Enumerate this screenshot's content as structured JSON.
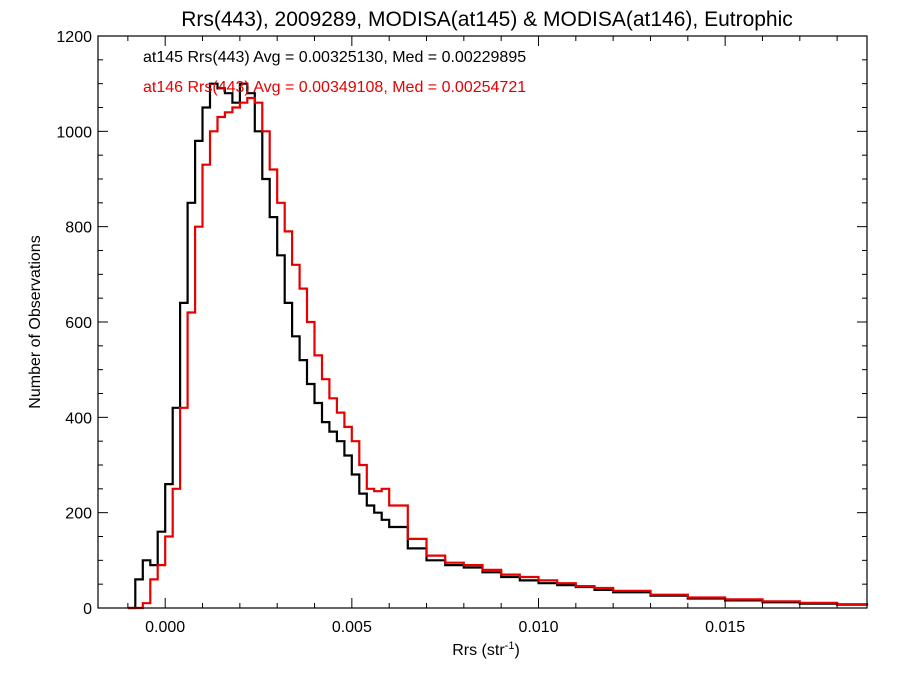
{
  "chart_data": {
    "type": "line",
    "title": "Rrs(443), 2009289, MODISA(at145) & MODISA(at146), Eutrophic",
    "xlabel": "Rrs (str",
    "xlabel_sup": "-1",
    "xlabel_suffix": ")",
    "ylabel": "Number of Observations",
    "xlim": [
      -0.0018,
      0.0188
    ],
    "ylim": [
      0,
      1200
    ],
    "xticks": [
      0.0,
      0.005,
      0.01,
      0.015
    ],
    "xtick_labels": [
      "0.000",
      "0.005",
      "0.010",
      "0.015"
    ],
    "yticks": [
      0,
      200,
      400,
      600,
      800,
      1000,
      1200
    ],
    "ytick_labels": [
      "0",
      "200",
      "400",
      "600",
      "800",
      "1000",
      "1200"
    ],
    "grid": false,
    "legend_position": "top-left",
    "series": [
      {
        "name": "at145",
        "color": "#000000",
        "label": "at145 Rrs(443) Avg = 0.00325130, Med = 0.00229895",
        "x": [
          -0.001,
          -0.0008,
          -0.0006,
          -0.0004,
          -0.0002,
          0.0,
          0.0002,
          0.0004,
          0.0006,
          0.0008,
          0.001,
          0.0012,
          0.0014,
          0.0016,
          0.0018,
          0.002,
          0.0022,
          0.0024,
          0.0026,
          0.0028,
          0.003,
          0.0032,
          0.0034,
          0.0036,
          0.0038,
          0.004,
          0.0042,
          0.0044,
          0.0046,
          0.0048,
          0.005,
          0.0052,
          0.0054,
          0.0056,
          0.0058,
          0.006,
          0.0065,
          0.007,
          0.0075,
          0.008,
          0.0085,
          0.009,
          0.0095,
          0.01,
          0.0105,
          0.011,
          0.0115,
          0.012,
          0.013,
          0.014,
          0.015,
          0.016,
          0.017,
          0.018,
          0.0188
        ],
        "y": [
          0,
          60,
          100,
          90,
          160,
          260,
          420,
          640,
          850,
          980,
          1050,
          1100,
          1090,
          1080,
          1060,
          1100,
          1080,
          1000,
          900,
          820,
          740,
          640,
          570,
          520,
          470,
          430,
          390,
          370,
          350,
          320,
          280,
          240,
          215,
          200,
          185,
          170,
          125,
          100,
          90,
          85,
          75,
          65,
          58,
          52,
          48,
          44,
          38,
          33,
          26,
          20,
          16,
          12,
          9,
          7,
          5
        ]
      },
      {
        "name": "at146",
        "color": "#e60000",
        "label": "at146 Rrs(443) Avg = 0.00349108, Med = 0.00254721",
        "x": [
          -0.001,
          -0.0008,
          -0.0006,
          -0.0004,
          -0.0002,
          0.0,
          0.0002,
          0.0004,
          0.0006,
          0.0008,
          0.001,
          0.0012,
          0.0014,
          0.0016,
          0.0018,
          0.002,
          0.0022,
          0.0024,
          0.0026,
          0.0028,
          0.003,
          0.0032,
          0.0034,
          0.0036,
          0.0038,
          0.004,
          0.0042,
          0.0044,
          0.0046,
          0.0048,
          0.005,
          0.0052,
          0.0054,
          0.0056,
          0.0058,
          0.006,
          0.0065,
          0.007,
          0.0075,
          0.008,
          0.0085,
          0.009,
          0.0095,
          0.01,
          0.0105,
          0.011,
          0.0115,
          0.012,
          0.013,
          0.014,
          0.015,
          0.016,
          0.017,
          0.018,
          0.0188
        ],
        "y": [
          0,
          0,
          10,
          60,
          90,
          150,
          250,
          420,
          620,
          800,
          930,
          1000,
          1030,
          1040,
          1050,
          1060,
          1070,
          1060,
          1000,
          920,
          850,
          790,
          720,
          670,
          600,
          530,
          480,
          440,
          410,
          380,
          350,
          300,
          250,
          245,
          250,
          215,
          145,
          110,
          95,
          90,
          80,
          70,
          65,
          58,
          52,
          46,
          42,
          36,
          28,
          22,
          18,
          14,
          11,
          8,
          6
        ]
      }
    ]
  }
}
